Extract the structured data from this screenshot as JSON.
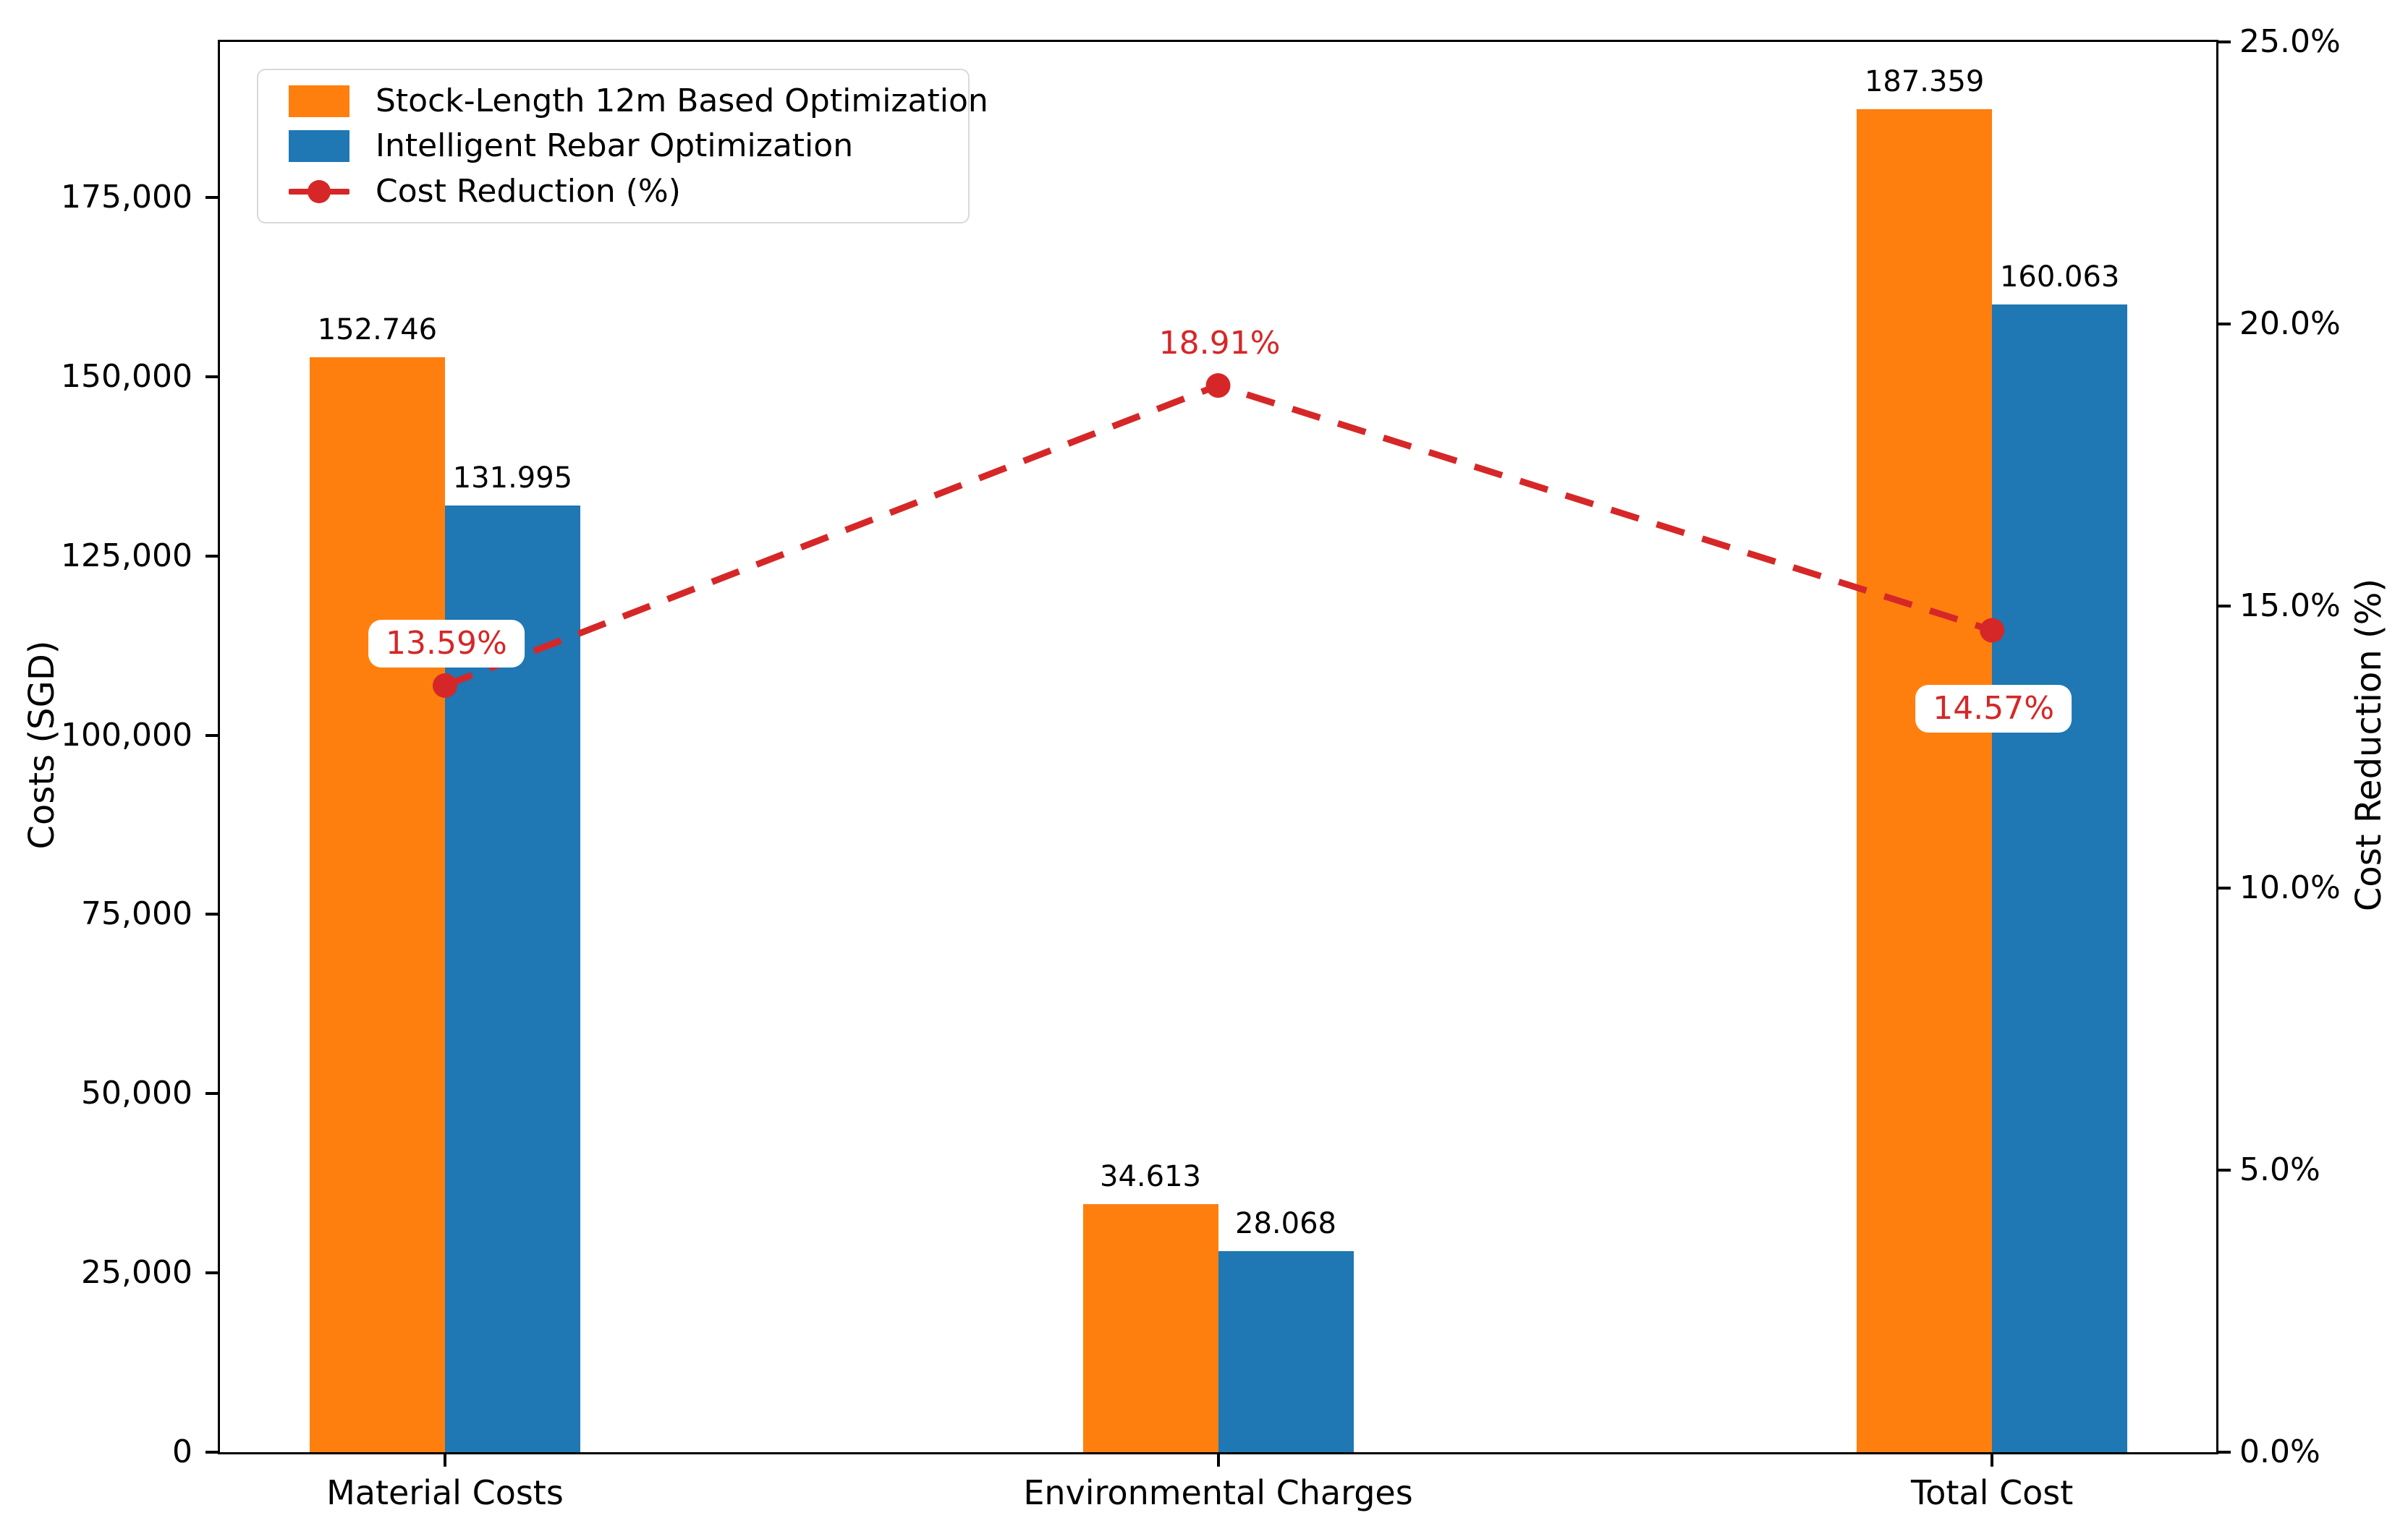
{
  "chart_data": {
    "type": "bar",
    "subtype": "grouped-bars-with-line-overlay",
    "categories": [
      "Material Costs",
      "Environmental Charges",
      "Total Cost"
    ],
    "series": [
      {
        "name": "Stock-Length 12m Based Optimization",
        "color": "#ff7f0e",
        "values": [
          152746,
          34613,
          187359
        ],
        "value_labels": [
          "152.746",
          "34.613",
          "187.359"
        ]
      },
      {
        "name": "Intelligent Rebar Optimization",
        "color": "#1f77b4",
        "values": [
          131995,
          28068,
          160063
        ],
        "value_labels": [
          "131.995",
          "28.068",
          "160.063"
        ]
      }
    ],
    "line": {
      "name": "Cost Reduction (%)",
      "color": "#d62728",
      "style": "dashed-with-circle-markers",
      "values": [
        13.59,
        18.91,
        14.57
      ],
      "value_labels": [
        "13.59%",
        "18.91%",
        "14.57%"
      ],
      "label_side": [
        "above",
        "above",
        "below"
      ],
      "label_boxed": [
        true,
        false,
        true
      ]
    },
    "left_axis": {
      "label": "Costs (SGD)",
      "max": 196700,
      "ticks": [
        {
          "v": 0,
          "label": "0"
        },
        {
          "v": 25000,
          "label": "25,000"
        },
        {
          "v": 50000,
          "label": "50,000"
        },
        {
          "v": 75000,
          "label": "75,000"
        },
        {
          "v": 100000,
          "label": "100,000"
        },
        {
          "v": 125000,
          "label": "125,000"
        },
        {
          "v": 150000,
          "label": "150,000"
        },
        {
          "v": 175000,
          "label": "175,000"
        }
      ]
    },
    "right_axis": {
      "label": "Cost Reduction (%)",
      "max": 25,
      "ticks": [
        {
          "v": 0,
          "label": "0.0%"
        },
        {
          "v": 5,
          "label": "5.0%"
        },
        {
          "v": 10,
          "label": "10.0%"
        },
        {
          "v": 15,
          "label": "15.0%"
        },
        {
          "v": 20,
          "label": "20.0%"
        },
        {
          "v": 25,
          "label": "25.0%"
        }
      ]
    },
    "legend_position": "upper-left",
    "grid": false,
    "background": "#ffffff"
  }
}
